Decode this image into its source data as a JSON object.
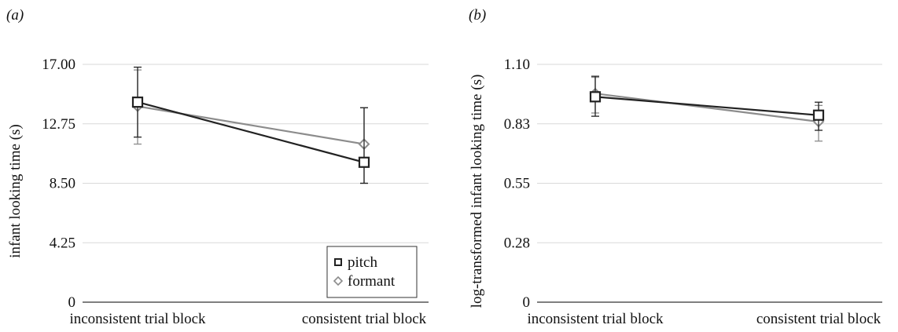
{
  "chart_data": [
    {
      "type": "line",
      "panel_label": "(a)",
      "ylabel": "infant looking time (s)",
      "categories": [
        "inconsistent trial block",
        "consistent trial block"
      ],
      "yticks": [
        "0",
        "4.25",
        "8.50",
        "12.75",
        "17.00"
      ],
      "ylim": [
        0,
        17
      ],
      "grid": true,
      "legend": "bottom-right",
      "series": [
        {
          "name": "pitch",
          "marker": "square",
          "color": "#222222",
          "values": [
            14.3,
            10.0
          ],
          "err_low": [
            11.8,
            8.5
          ],
          "err_high": [
            16.8,
            13.9
          ]
        },
        {
          "name": "formant",
          "marker": "diamond",
          "color": "#8c8c8c",
          "values": [
            14.0,
            11.3
          ],
          "err_low": [
            11.3,
            8.5
          ],
          "err_high": [
            16.6,
            13.9
          ]
        }
      ]
    },
    {
      "type": "line",
      "panel_label": "(b)",
      "ylabel": "log-transformed infant looking time (s)",
      "categories": [
        "inconsistent trial block",
        "consistent trial block"
      ],
      "yticks": [
        "0",
        "0.28",
        "0.55",
        "0.83",
        "1.10"
      ],
      "ylim": [
        0,
        1.1
      ],
      "grid": true,
      "series": [
        {
          "name": "pitch",
          "marker": "square",
          "color": "#222222",
          "values": [
            0.95,
            0.865
          ],
          "err_low": [
            0.86,
            0.795
          ],
          "err_high": [
            1.045,
            0.925
          ]
        },
        {
          "name": "formant",
          "marker": "diamond",
          "color": "#8c8c8c",
          "values": [
            0.965,
            0.835
          ],
          "err_low": [
            0.875,
            0.745
          ],
          "err_high": [
            1.04,
            0.91
          ]
        }
      ]
    }
  ]
}
